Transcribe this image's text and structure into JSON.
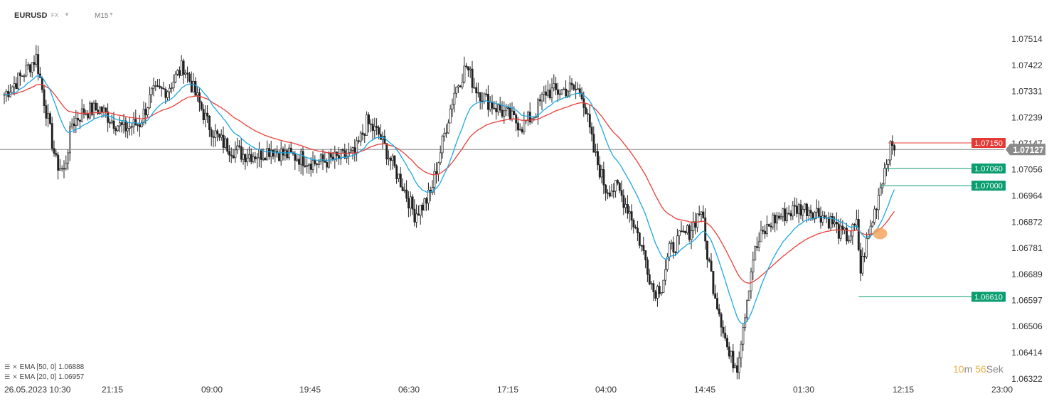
{
  "header": {
    "symbol": "EURUSD",
    "market": "FX",
    "timeframe": "M15"
  },
  "indicators": [
    {
      "label": "EMA [50, 0] 1.06888",
      "color": "#e8403a",
      "period": 50
    },
    {
      "label": "EMA [20, 0] 1.06957",
      "color": "#1ea7e4",
      "period": 20
    }
  ],
  "countdown": {
    "minutes": "10",
    "minutes_unit": "m",
    "seconds": "56",
    "seconds_unit": "Sek"
  },
  "chart_data": {
    "type": "candlestick",
    "ylim": [
      1.06322,
      1.07514
    ],
    "y_ticks": [
      "1.07514",
      "1.07422",
      "1.07331",
      "1.07239",
      "1.07147",
      "1.07056",
      "1.06964",
      "1.06872",
      "1.06781",
      "1.06689",
      "1.06597",
      "1.06506",
      "1.06414",
      "1.06322"
    ],
    "x_ticks": [
      "26.05.2023  10:30",
      "21:15",
      "09:00",
      "19:45",
      "06:30",
      "17:15",
      "04:00",
      "14:45",
      "01:30",
      "12:15",
      "23:00"
    ],
    "current_price": {
      "value": 1.07127,
      "label": "1.07127"
    },
    "levels": [
      {
        "value": 1.0715,
        "label": "1.07150",
        "color": "#e53935",
        "from_index": 444
      },
      {
        "value": 1.0706,
        "label": "1.07060",
        "color": "#0a9d6e",
        "from_index": 442
      },
      {
        "value": 1.07,
        "label": "1.07000",
        "color": "#0a9d6e",
        "from_index": 440
      },
      {
        "value": 1.0661,
        "label": "1.06610",
        "color": "#0a9d6e",
        "from_index": 429
      }
    ],
    "marker": {
      "index": 438,
      "value": 1.06832,
      "color": "#f5a055"
    },
    "close_anchors": [
      [
        0,
        1.0732
      ],
      [
        8,
        1.0738
      ],
      [
        16,
        1.0745
      ],
      [
        20,
        1.073
      ],
      [
        26,
        1.0708
      ],
      [
        30,
        1.0705
      ],
      [
        34,
        1.0722
      ],
      [
        40,
        1.0726
      ],
      [
        48,
        1.0727
      ],
      [
        54,
        1.0723
      ],
      [
        60,
        1.072
      ],
      [
        68,
        1.0722
      ],
      [
        74,
        1.0732
      ],
      [
        82,
        1.0734
      ],
      [
        90,
        1.0742
      ],
      [
        96,
        1.0732
      ],
      [
        102,
        1.0722
      ],
      [
        108,
        1.0716
      ],
      [
        114,
        1.0713
      ],
      [
        120,
        1.0711
      ],
      [
        128,
        1.0711
      ],
      [
        134,
        1.0713
      ],
      [
        140,
        1.0711
      ],
      [
        148,
        1.071
      ],
      [
        156,
        1.0708
      ],
      [
        164,
        1.0709
      ],
      [
        170,
        1.071
      ],
      [
        176,
        1.0711
      ],
      [
        182,
        1.0722
      ],
      [
        188,
        1.0718
      ],
      [
        194,
        1.0709
      ],
      [
        200,
        1.07
      ],
      [
        206,
        1.069
      ],
      [
        210,
        1.0693
      ],
      [
        214,
        1.0697
      ],
      [
        220,
        1.0715
      ],
      [
        226,
        1.0733
      ],
      [
        232,
        1.0742
      ],
      [
        236,
        1.0735
      ],
      [
        242,
        1.073
      ],
      [
        248,
        1.0727
      ],
      [
        254,
        1.0724
      ],
      [
        260,
        1.0721
      ],
      [
        266,
        1.0725
      ],
      [
        272,
        1.0733
      ],
      [
        278,
        1.0733
      ],
      [
        284,
        1.0734
      ],
      [
        290,
        1.0733
      ],
      [
        296,
        1.0712
      ],
      [
        302,
        1.0699
      ],
      [
        308,
        1.0699
      ],
      [
        314,
        1.0691
      ],
      [
        318,
        1.0683
      ],
      [
        322,
        1.0674
      ],
      [
        326,
        1.0663
      ],
      [
        330,
        1.0665
      ],
      [
        334,
        1.0677
      ],
      [
        340,
        1.0682
      ],
      [
        344,
        1.0684
      ],
      [
        350,
        1.0692
      ],
      [
        352,
        1.068
      ],
      [
        356,
        1.0665
      ],
      [
        360,
        1.0653
      ],
      [
        364,
        1.064
      ],
      [
        368,
        1.0637
      ],
      [
        372,
        1.0656
      ],
      [
        376,
        1.0675
      ],
      [
        380,
        1.0682
      ],
      [
        386,
        1.0688
      ],
      [
        392,
        1.069
      ],
      [
        398,
        1.0692
      ],
      [
        404,
        1.0692
      ],
      [
        410,
        1.069
      ],
      [
        416,
        1.0687
      ],
      [
        420,
        1.0683
      ],
      [
        424,
        1.0682
      ],
      [
        428,
        1.0686
      ],
      [
        430,
        1.067
      ],
      [
        432,
        1.0677
      ],
      [
        436,
        1.0688
      ],
      [
        440,
        1.07
      ],
      [
        444,
        1.0712
      ],
      [
        447,
        1.0714
      ]
    ]
  }
}
